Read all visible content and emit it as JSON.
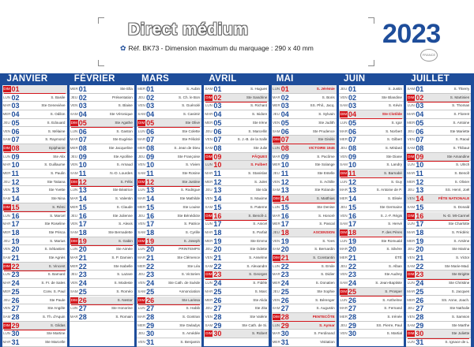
{
  "header": {
    "brand": "Direct médium",
    "ref": "Réf. BK73 - Dimension maximum du marquage : 290 x 40 mm",
    "ref_icon": "leaf-icon",
    "year": "2023",
    "stamp": "FRANCE"
  },
  "colors": {
    "blue": "#1e4d9a",
    "red": "#d4161c",
    "grey": "#e6e6e6"
  },
  "weekday_abbr": [
    "LUN",
    "MAR",
    "MER",
    "JEU",
    "VEN",
    "SAM",
    "DIM"
  ],
  "months": [
    {
      "name": "JANVIER",
      "start": 6,
      "days": 31,
      "holidays": [
        1
      ],
      "hol_labels": {
        "1": "JOUR DE L'AN"
      },
      "saints": [
        "",
        "S. Basile",
        "Ste Geneviève",
        "S. Odilon",
        "S. Edouard",
        "S. Mélaine",
        "S. Raymond",
        "Epiphanie",
        "Ste Alix",
        "S. Guillaume",
        "S. Paulin",
        "Ste Tatiana",
        "Ste Yvette",
        "Ste Nina",
        "S. Rémi",
        "S. Marcel",
        "Ste Roseline",
        "Ste Prisca",
        "S. Marius",
        "S. Sébastien",
        "Ste Agnès",
        "S. Vincent",
        "S. Barnard",
        "S. Fr. de Sales",
        "Conv. S. Paul",
        "Ste Paule",
        "Ste Angèle",
        "S. Th. d'Aquin",
        "S. Gildas",
        "Ste Martine",
        "Ste Marcelle"
      ]
    },
    {
      "name": "FÉVRIER",
      "start": 2,
      "days": 28,
      "holidays": [],
      "hol_labels": {},
      "saints": [
        "Ste Ella",
        "Présentation",
        "S. Blaise",
        "Ste Véronique",
        "Ste Agathe",
        "S. Gaston",
        "Ste Eugénie",
        "Ste Jacqueline",
        "Ste Apolline",
        "S. Arnaud",
        "N.-D. Lourdes",
        "S. Félix",
        "Ste Béatrice",
        "S. Valentin",
        "S. Claude",
        "Ste Julienne",
        "S. Alexis",
        "Ste Bernadette",
        "S. Gabin",
        "Ste Aimée",
        "S. P. Damien",
        "Ste Isabelle",
        "S. Lazare",
        "S. Modeste",
        "S. Roméo",
        "S. Nestor",
        "Ste Honorine",
        "S. Romain"
      ]
    },
    {
      "name": "MARS",
      "start": 2,
      "days": 31,
      "holidays": [],
      "hol_labels": {},
      "saints": [
        "S. Aubin",
        "S. Ch. le Bon",
        "S. Guénolé",
        "S. Casimir",
        "Ste Olive",
        "Ste Colette",
        "Ste Félicité",
        "S. Jean de Dieu",
        "Ste Françoise",
        "S. Vivien",
        "Ste Rosine",
        "Ste Justine",
        "S. Rodrigue",
        "Ste Mathilde",
        "Ste Louise",
        "Ste Bénédicte",
        "S. Patrice",
        "S. Cyrille",
        "S. Joseph",
        "PRINTEMPS",
        "Ste Clémence",
        "Ste Léa",
        "S. Victorien",
        "Ste Cath. de Suède",
        "Annonciation",
        "Ste Larissa",
        "S. Habib",
        "S. Gontran",
        "Ste Gwladys",
        "S. Amédée",
        "S. Benjamin"
      ]
    },
    {
      "name": "AVRIL",
      "start": 5,
      "days": 30,
      "holidays": [
        9,
        10
      ],
      "hol_labels": {
        "9": "PÂQUES",
        "10": "L. DE PÂQUES"
      },
      "saints": [
        "S. Hugues",
        "Ste Sandrine",
        "S. Richard",
        "S. Isidore",
        "Ste Irène",
        "S. Marcellin",
        "S. J.-B. de la Salle",
        "Ste Julie",
        "PÂQUES",
        "S. Fulbert",
        "S. Stanislas",
        "S. Jules",
        "Ste Ida",
        "S. Maxime",
        "S. Paterne",
        "S. Benoît-J.",
        "S. Anicet",
        "S. Parfait",
        "Ste Emma",
        "Ste Odette",
        "S. Anselme",
        "S. Alexandre",
        "S. Georges",
        "S. Fidèle",
        "S. Marc",
        "Ste Alida",
        "Ste Zita",
        "Ste Valérie",
        "Ste Cath. de Si.",
        "S. Robert"
      ]
    },
    {
      "name": "MAI",
      "start": 0,
      "days": 31,
      "holidays": [
        1,
        8,
        18,
        28,
        29
      ],
      "hol_labels": {
        "1": "FÊTE DU TRAVAIL",
        "8": "VICTOIRE 1945",
        "18": "ASCENSION",
        "28": "PENTECÔTE",
        "29": "L. DE PENTECÔTE"
      },
      "saints": [
        "S. Jérémie",
        "S. Boris",
        "SS. Phil., Jacq.",
        "S. Sylvain",
        "Ste Judith",
        "Ste Prudence",
        "Ste Gisèle",
        "VICTOIRE 1945",
        "S. Pacôme",
        "Ste Solange",
        "Ste Estelle",
        "S. Achille",
        "Ste Rolande",
        "S. Matthias",
        "Ste Denise",
        "S. Honoré",
        "S. Pascal",
        "ASCENSION",
        "S. Yves",
        "S. Bernardin",
        "S. Constantin",
        "S. Emile",
        "S. Didier",
        "S. Donatien",
        "Ste Sophie",
        "S. Bérenger",
        "S. Augustin",
        "PENTECÔTE",
        "S. Aymar",
        "S. Ferdinand",
        "Visitation"
      ]
    },
    {
      "name": "JUIN",
      "start": 3,
      "days": 30,
      "holidays": [
        4
      ],
      "hol_labels": {
        "4": "F. des Mères"
      },
      "saints": [
        "S. Justin",
        "Ste Blandine",
        "S. Kévin",
        "Ste Clotilde",
        "S. Igor",
        "S. Norbert",
        "S. Gilbert",
        "S. Médard",
        "Ste Diane",
        "S. Landry",
        "S. Barnabé",
        "S. Guy",
        "S. Antoine de P.",
        "S. Elisée",
        "Ste Germaine",
        "S. J.-F. Régis",
        "S. Hervé",
        "F. des Pères",
        "Ste Romuald",
        "S. Silvère",
        "ÉTÉ",
        "S. Alban",
        "Ste Audrey",
        "S. Jean-Baptiste",
        "S. Prosper",
        "S. Anthelme",
        "S. Fernand",
        "S. Irénée",
        "SS. Pierre, Paul",
        "S. Martial"
      ]
    },
    {
      "name": "JUILLET",
      "start": 5,
      "days": 31,
      "holidays": [
        14
      ],
      "hol_labels": {
        "14": "FÊTE NATIONALE"
      },
      "saints": [
        "S. Thierry",
        "S. Martinien",
        "S. Thomas",
        "S. Florent",
        "S. Antoine",
        "Ste Mariette",
        "S. Raoul",
        "S. Thibaut",
        "Ste Amandine",
        "S. Ulrich",
        "S. Benoît",
        "S. Olivier",
        "SS. Henri, Joël",
        "FÊTE NATIONALE",
        "S. Donald",
        "N.-D. Mt-Carmel",
        "Ste Charlotte",
        "S. Frédéric",
        "S. Arsène",
        "Ste Marina",
        "S. Victor",
        "Ste Marie-Mad.",
        "Ste Brigitte",
        "Ste Christine",
        "S. Jacques",
        "SS. Anne, Joach.",
        "Ste Nathalie",
        "S. Samson",
        "Ste Marthe",
        "Ste Juliette",
        "S. Ignace de L."
      ]
    }
  ]
}
